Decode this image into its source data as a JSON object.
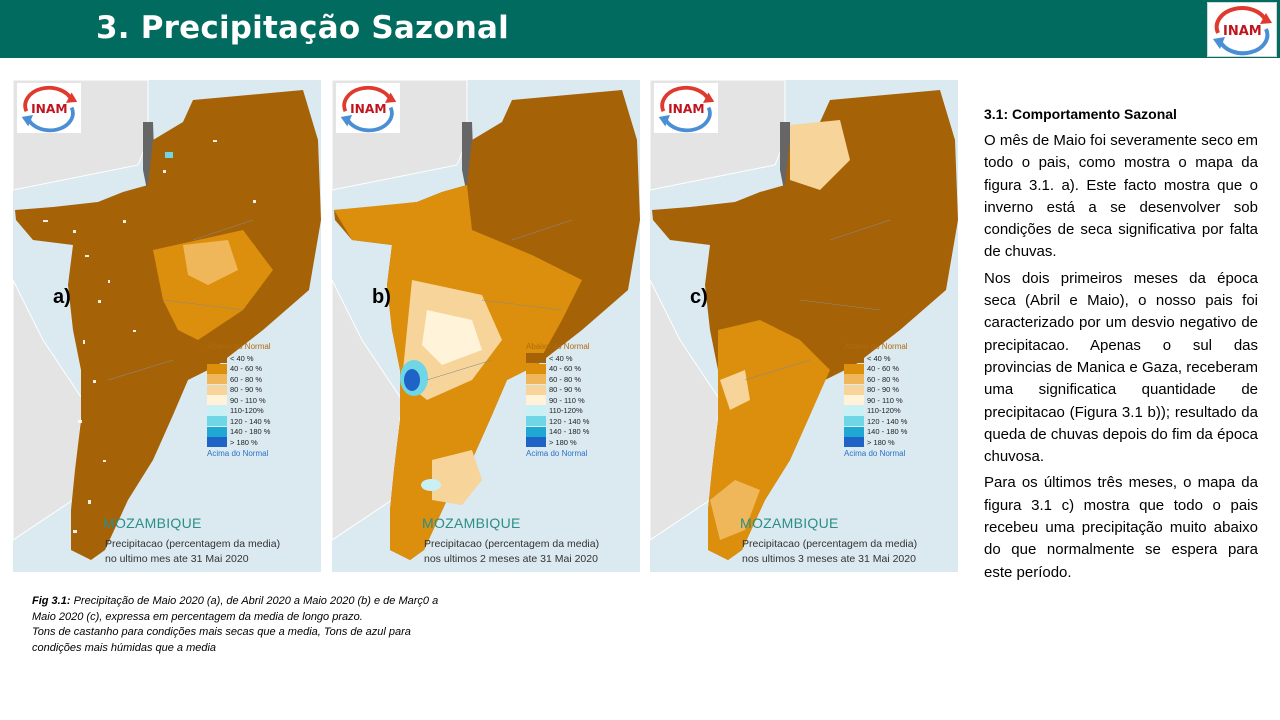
{
  "header": {
    "title": "3. Precipitação Sazonal",
    "logo_text": "INAM",
    "colors": {
      "bar": "#006b5e",
      "title_text": "#ffffff"
    }
  },
  "panels": [
    {
      "label": "a)",
      "logo_text": "INAM",
      "country": "MOZAMBIQUE",
      "caption_line1": "Precipitacao (percentagem da media)",
      "caption_line2": "no ultimo mes ate 31 Mai 2020"
    },
    {
      "label": "b)",
      "logo_text": "INAM",
      "country": "MOZAMBIQUE",
      "caption_line1": "Precipitacao (percentagem da media)",
      "caption_line2": "nos ultimos 2 meses ate 31 Mai 2020"
    },
    {
      "label": "c)",
      "logo_text": "INAM",
      "country": "MOZAMBIQUE",
      "caption_line1": "Precipitacao (percentagem da media)",
      "caption_line2": "nos ultimos 3 meses ate 31 Mai 2020"
    }
  ],
  "legend": {
    "top": "Abaixo do Normal",
    "bottom": "Acima do Normal",
    "classes": [
      {
        "label": "< 40 %",
        "color": "#a56207"
      },
      {
        "label": "40 - 60 %",
        "color": "#db8f0c"
      },
      {
        "label": "60 - 80 %",
        "color": "#f0b65a"
      },
      {
        "label": "80 - 90 %",
        "color": "#f6d49a"
      },
      {
        "label": "90 - 110 %",
        "color": "#fff3d9"
      },
      {
        "label": "110-120%",
        "color": "#c9f1f5"
      },
      {
        "label": "120 - 140 %",
        "color": "#6fd6e6"
      },
      {
        "label": "140 - 180 %",
        "color": "#1fa8d4"
      },
      {
        "label": "> 180 %",
        "color": "#1f63c6"
      }
    ]
  },
  "figure_caption": {
    "prefix": "Fig 3.1:",
    "line1": " Precipitação de Maio 2020  (a), de Abril 2020  a Maio 2020  (b) e de Març0 a",
    "line2": "Maio 2020  (c), expressa em percentagem da media de longo prazo.",
    "line3": "Tons de castanho para condições mais secas que a media, Tons de azul para",
    "line4": "condições mais húmidas que a media"
  },
  "sidebar": {
    "heading": "3.1: Comportamento Sazonal",
    "paragraph1": "O mês de Maio foi severamente seco em todo o pais, como mostra o mapa da figura 3.1. a). Este facto mostra que o inverno está a se desenvolver sob condições de seca significativa por falta de chuvas.",
    "paragraph2": "Nos dois primeiros meses da época seca (Abril e Maio), o nosso pais foi caracterizado por um desvio negativo de precipitacao. Apenas o sul das provincias de Manica e Gaza, receberam uma significatica quantidade de precipitacao (Figura 3.1 b)); resultado da queda de chuvas depois do fim da época chuvosa.",
    "paragraph3": "Para os últimos três meses, o mapa da figura 3.1 c) mostra que todo o pais recebeu uma precipitação muito abaixo do que normalmente se espera para este período."
  }
}
